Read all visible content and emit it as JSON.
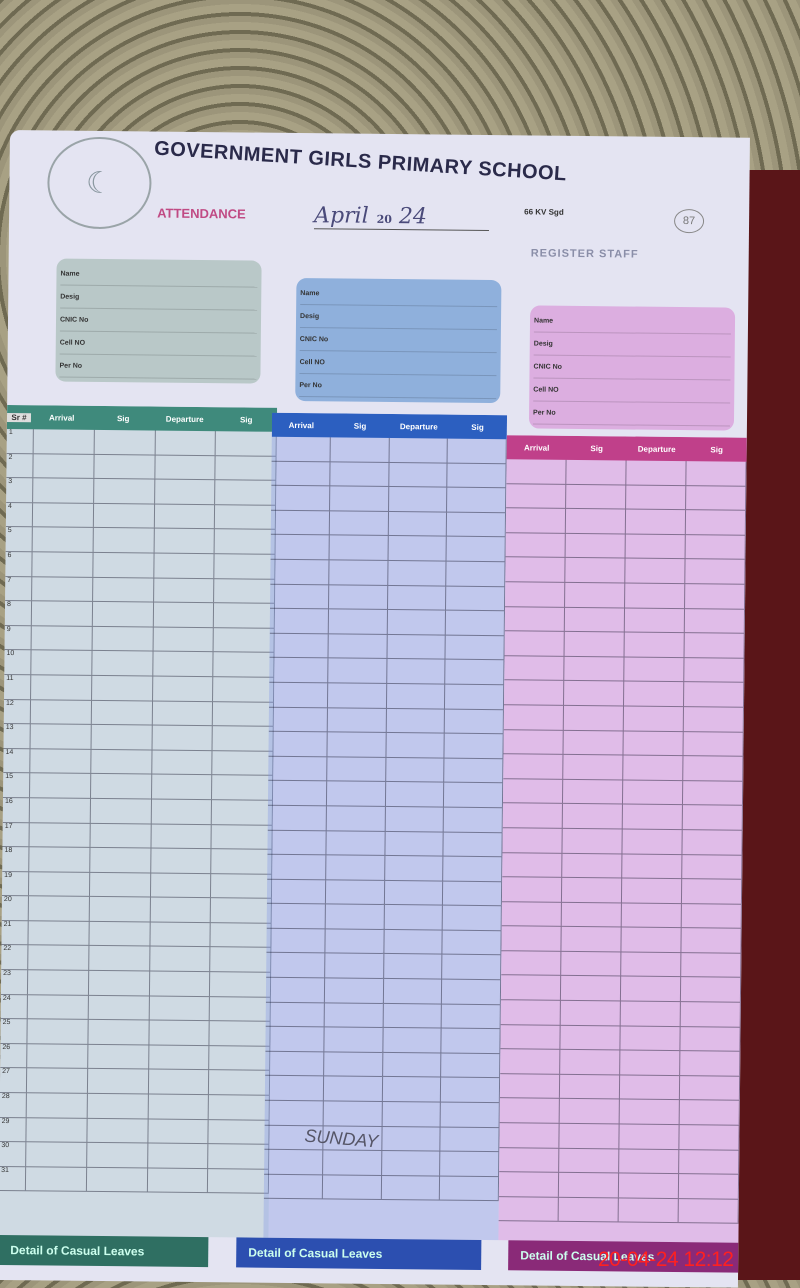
{
  "header": {
    "school": "GOVERNMENT  GIRLS PRIMARY  SCHOOL",
    "subtitle": "66 KV Sgd",
    "attendance_label": "ATTENDANCE",
    "month": "April",
    "year_prefix": "20",
    "year_suffix": "24",
    "register_label": "REGISTER STAFF",
    "page_number": "87"
  },
  "field_labels": [
    "Name",
    "Desig",
    "CNIC No",
    "Cell NO",
    "Per No"
  ],
  "columns": {
    "sr": "Sr #",
    "arrival": "Arrival",
    "sig1": "Sig",
    "departure": "Departure",
    "sig2": "Sig"
  },
  "staff_colors": [
    "#3f8a7c",
    "#2c5fc0",
    "#c0408a"
  ],
  "footer_label": "Detail of Casual Leaves",
  "annotations": [
    "SUNDAY"
  ],
  "timestamp": "20-04-24  12:12"
}
